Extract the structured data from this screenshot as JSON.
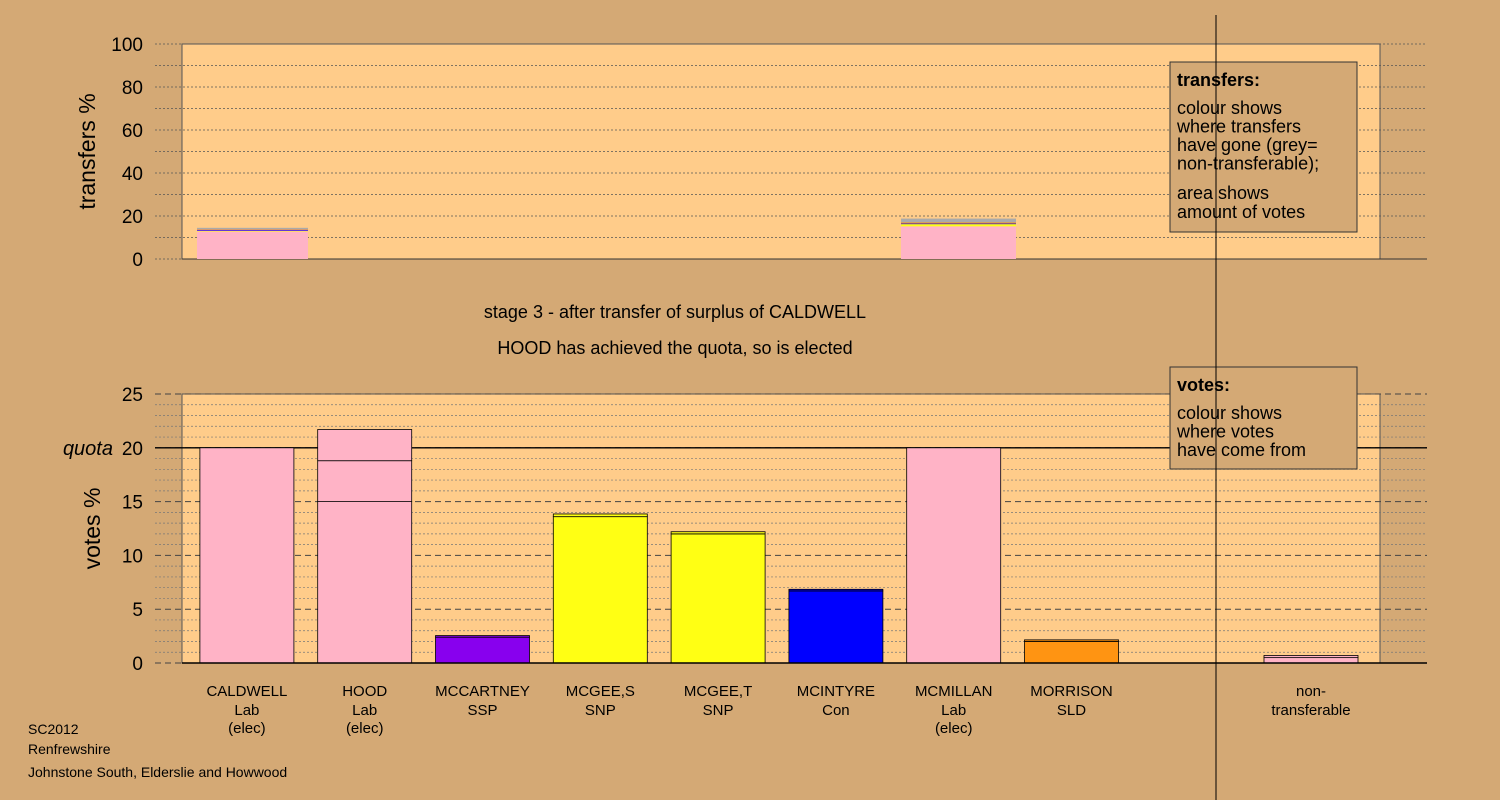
{
  "colors": {
    "background": "#d4a975",
    "plot_bg": "#ffcc8a",
    "Lab": "#ffb3c6",
    "SSP": "#8800ee",
    "SNP": "#ffff14",
    "Con": "#0000ff",
    "SLD": "#ff9412",
    "grey": "#aaaaaa"
  },
  "stage_text": "stage 3 - after transfer of surplus of CALDWELL",
  "elected_text": "HOOD has achieved the quota, so is elected",
  "footer": [
    "SC2012",
    "Renfrewshire",
    "Johnstone South, Elderslie and Howwood"
  ],
  "chart_data": [
    {
      "type": "bar",
      "stacked": true,
      "ylabel": "transfers %",
      "ylim": [
        0,
        100
      ],
      "yticks": [
        0,
        20,
        40,
        60,
        80,
        100
      ],
      "legend": {
        "position": "top-right",
        "title": "transfers:",
        "lines1": [
          "colour shows",
          "where transfers",
          "have gone (grey=",
          "non-transferable);"
        ],
        "lines2": [
          "area shows",
          "amount of votes"
        ]
      },
      "bars": [
        {
          "from": "CALDWELL",
          "segments": [
            {
              "party": "Lab",
              "value": 12.8
            },
            {
              "party": "SNP",
              "value": 0.3
            },
            {
              "party": "Con",
              "value": 0.3
            },
            {
              "party": "SSP",
              "value": 0.2
            },
            {
              "party": "SLD",
              "value": 0.2
            },
            {
              "party": "grey",
              "value": 0.7
            }
          ]
        },
        {
          "from": "MCMILLAN",
          "segments": [
            {
              "party": "Lab",
              "value": 15.2
            },
            {
              "party": "SNP",
              "value": 1.0
            },
            {
              "party": "Con",
              "value": 0.3
            },
            {
              "party": "SLD",
              "value": 0.5
            },
            {
              "party": "grey",
              "value": 1.8
            }
          ]
        }
      ]
    },
    {
      "type": "bar",
      "stacked": true,
      "ylabel": "votes %",
      "quota_label": "quota",
      "quota": 20.0,
      "ylim": [
        0,
        25
      ],
      "yticks": [
        0,
        5,
        10,
        15,
        20,
        25
      ],
      "legend": {
        "position": "top-right",
        "title": "votes:",
        "lines1": [
          "colour shows",
          "where votes",
          "have come from"
        ]
      },
      "candidates": [
        {
          "name": "CALDWELL",
          "party": "Lab",
          "note": "(elec)",
          "segments": [
            {
              "party": "Lab",
              "value": 20.0
            }
          ]
        },
        {
          "name": "HOOD",
          "party": "Lab",
          "note": "(elec)",
          "segments": [
            {
              "party": "Lab",
              "value": 15.0
            },
            {
              "party": "Lab",
              "value": 3.8
            },
            {
              "party": "Lab",
              "value": 2.9
            }
          ]
        },
        {
          "name": "MCCARTNEY",
          "party": "SSP",
          "note": "",
          "segments": [
            {
              "party": "SSP",
              "value": 2.4
            },
            {
              "party": "SSP",
              "value": 0.15
            }
          ]
        },
        {
          "name": "MCGEE,S",
          "party": "SNP",
          "note": "",
          "segments": [
            {
              "party": "SNP",
              "value": 13.6
            },
            {
              "party": "SNP",
              "value": 0.25
            }
          ]
        },
        {
          "name": "MCGEE,T",
          "party": "SNP",
          "note": "",
          "segments": [
            {
              "party": "SNP",
              "value": 12.0
            },
            {
              "party": "SNP",
              "value": 0.2
            }
          ]
        },
        {
          "name": "MCINTYRE",
          "party": "Con",
          "note": "",
          "segments": [
            {
              "party": "Con",
              "value": 6.7
            },
            {
              "party": "Con",
              "value": 0.15
            }
          ]
        },
        {
          "name": "MCMILLAN",
          "party": "Lab",
          "note": "(elec)",
          "segments": [
            {
              "party": "Lab",
              "value": 20.0
            }
          ]
        },
        {
          "name": "MORRISON",
          "party": "SLD",
          "note": "",
          "segments": [
            {
              "party": "SLD",
              "value": 2.0
            },
            {
              "party": "SLD",
              "value": 0.15
            }
          ]
        }
      ],
      "nontransferable": {
        "label_lines": [
          "non-",
          "transferable"
        ],
        "segments": [
          {
            "party": "Lab",
            "value": 0.5
          },
          {
            "party": "Lab",
            "value": 0.2
          }
        ]
      }
    }
  ]
}
